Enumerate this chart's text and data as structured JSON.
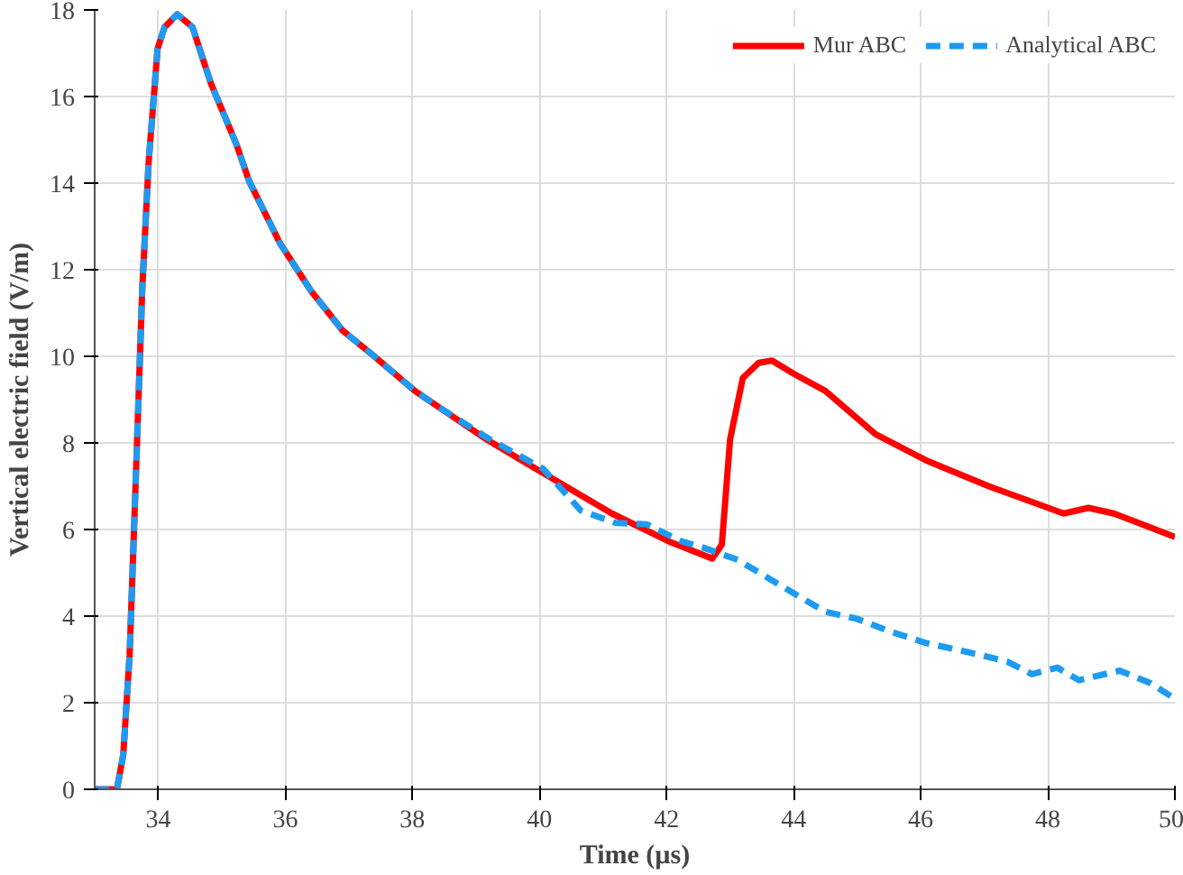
{
  "chart_data": {
    "type": "line",
    "xlabel": "Time (µs)",
    "ylabel": "Vertical electric field (V/m)",
    "xlim": [
      33,
      50
    ],
    "ylim": [
      0,
      18
    ],
    "xticks": [
      34,
      36,
      38,
      40,
      42,
      44,
      46,
      48,
      50
    ],
    "yticks": [
      0,
      2,
      4,
      6,
      8,
      10,
      12,
      14,
      16,
      18
    ],
    "grid": true,
    "legend": "top right",
    "series": [
      {
        "name": "Mur ABC",
        "color": "#ff0000",
        "line_style": "solid",
        "x": [
          33,
          33.35,
          33.45,
          33.55,
          33.65,
          33.75,
          33.85,
          33.99,
          34.1,
          34.3,
          34.54,
          34.83,
          35.23,
          35.43,
          35.92,
          36.41,
          36.9,
          37.4,
          38.04,
          38.38,
          39.2,
          40.06,
          41.14,
          42.03,
          42.72,
          42.87,
          43.0,
          43.2,
          43.45,
          43.66,
          44.0,
          44.5,
          45.29,
          46.08,
          47.07,
          48.25,
          48.64,
          49.04,
          50
        ],
        "values": [
          0,
          0,
          0.8,
          3.1,
          7.3,
          11.6,
          14.5,
          17.1,
          17.6,
          17.9,
          17.6,
          16.3,
          14.9,
          14.05,
          12.6,
          11.5,
          10.6,
          10.0,
          9.2,
          8.86,
          8.05,
          7.3,
          6.37,
          5.73,
          5.33,
          5.65,
          8.08,
          9.5,
          9.85,
          9.9,
          9.6,
          9.2,
          8.2,
          7.6,
          7.0,
          6.37,
          6.5,
          6.37,
          5.83
        ]
      },
      {
        "name": "Analytical ABC",
        "color": "#1e9bf0",
        "line_style": "dashed",
        "x": [
          33,
          33.35,
          33.45,
          33.55,
          33.65,
          33.75,
          33.85,
          33.99,
          34.1,
          34.3,
          34.54,
          34.83,
          35.23,
          35.43,
          35.92,
          36.41,
          36.9,
          37.4,
          38.04,
          38.38,
          39.2,
          40.06,
          40.65,
          41.2,
          41.69,
          42.23,
          42.58,
          43.12,
          43.61,
          44.1,
          44.5,
          44.99,
          45.49,
          46.08,
          46.77,
          47.36,
          47.75,
          48.15,
          48.49,
          49.13,
          49.62,
          50
        ],
        "values": [
          0,
          0,
          0.8,
          3.1,
          7.3,
          11.6,
          14.5,
          17.1,
          17.6,
          17.9,
          17.6,
          16.3,
          14.9,
          14.05,
          12.6,
          11.5,
          10.6,
          10.0,
          9.2,
          8.86,
          8.1,
          7.4,
          6.44,
          6.15,
          6.12,
          5.73,
          5.58,
          5.3,
          4.87,
          4.44,
          4.1,
          3.94,
          3.66,
          3.38,
          3.16,
          2.95,
          2.66,
          2.81,
          2.52,
          2.74,
          2.45,
          2.09
        ]
      }
    ]
  }
}
